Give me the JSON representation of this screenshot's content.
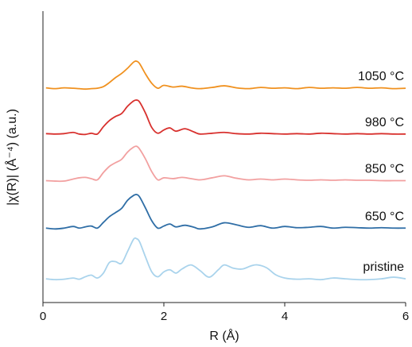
{
  "chart_data": {
    "type": "line",
    "title": "",
    "xlabel": "R (Å)",
    "ylabel": "|χ(R)|  (Å⁻⁴) (a.u.)",
    "xlim": [
      0,
      6
    ],
    "xticks": [
      "0",
      "2",
      "4",
      "6"
    ],
    "ylim_note": "curves vertically offset, arbitrary units",
    "grid": false,
    "legend": "none (series labeled inline at right)",
    "series": [
      {
        "name": "1050 °C",
        "color": "#f0911f",
        "x": [
          0.05,
          0.2,
          0.35,
          0.5,
          0.6,
          0.7,
          0.8,
          0.9,
          1.0,
          1.1,
          1.2,
          1.3,
          1.4,
          1.5,
          1.55,
          1.6,
          1.7,
          1.8,
          1.9,
          2.0,
          2.15,
          2.3,
          2.45,
          2.6,
          2.8,
          3.0,
          3.2,
          3.4,
          3.6,
          3.8,
          4.0,
          4.2,
          4.4,
          4.6,
          4.8,
          5.0,
          5.2,
          5.4,
          5.6,
          5.8,
          6.0
        ],
        "y": [
          5.25,
          5.23,
          5.25,
          5.24,
          5.23,
          5.22,
          5.23,
          5.24,
          5.28,
          5.38,
          5.5,
          5.6,
          5.73,
          5.88,
          5.9,
          5.84,
          5.58,
          5.36,
          5.24,
          5.31,
          5.27,
          5.29,
          5.25,
          5.23,
          5.26,
          5.3,
          5.25,
          5.23,
          5.26,
          5.24,
          5.25,
          5.23,
          5.26,
          5.24,
          5.25,
          5.24,
          5.26,
          5.24,
          5.25,
          5.23,
          5.24
        ]
      },
      {
        "name": "980 °C",
        "color": "#d8312e",
        "x": [
          0.05,
          0.2,
          0.35,
          0.5,
          0.6,
          0.7,
          0.8,
          0.9,
          1.0,
          1.1,
          1.2,
          1.3,
          1.4,
          1.5,
          1.55,
          1.6,
          1.7,
          1.8,
          1.9,
          2.0,
          2.1,
          2.2,
          2.35,
          2.5,
          2.6,
          2.8,
          3.0,
          3.2,
          3.4,
          3.6,
          3.8,
          4.0,
          4.2,
          4.4,
          4.6,
          4.8,
          5.0,
          5.2,
          5.4,
          5.6,
          5.8,
          6.0
        ],
        "y": [
          4.13,
          4.12,
          4.13,
          4.16,
          4.12,
          4.11,
          4.14,
          4.12,
          4.3,
          4.45,
          4.55,
          4.62,
          4.8,
          4.93,
          4.95,
          4.9,
          4.62,
          4.28,
          4.14,
          4.22,
          4.27,
          4.19,
          4.25,
          4.17,
          4.12,
          4.14,
          4.16,
          4.13,
          4.12,
          4.14,
          4.13,
          4.12,
          4.13,
          4.12,
          4.14,
          4.13,
          4.12,
          4.13,
          4.12,
          4.13,
          4.12,
          4.12
        ]
      },
      {
        "name": "850 °C",
        "color": "#f2a0a0",
        "x": [
          0.05,
          0.2,
          0.35,
          0.5,
          0.6,
          0.7,
          0.8,
          0.9,
          1.0,
          1.1,
          1.2,
          1.3,
          1.4,
          1.5,
          1.55,
          1.6,
          1.7,
          1.8,
          1.9,
          2.0,
          2.15,
          2.3,
          2.45,
          2.6,
          2.8,
          3.0,
          3.2,
          3.4,
          3.6,
          3.8,
          4.0,
          4.2,
          4.4,
          4.6,
          4.8,
          5.0,
          5.2,
          5.4,
          5.6,
          5.8,
          6.0
        ],
        "y": [
          2.98,
          2.97,
          2.97,
          3.02,
          3.05,
          3.06,
          3.03,
          3.0,
          3.18,
          3.33,
          3.42,
          3.5,
          3.68,
          3.8,
          3.82,
          3.75,
          3.5,
          3.2,
          3.0,
          3.05,
          3.03,
          3.06,
          3.03,
          3.0,
          3.05,
          3.1,
          3.04,
          3.0,
          3.02,
          3.0,
          3.02,
          3.0,
          2.99,
          3.0,
          2.99,
          3.0,
          2.99,
          2.99,
          2.98,
          2.98,
          2.98
        ]
      },
      {
        "name": "650 °C",
        "color": "#2f6ea6",
        "x": [
          0.05,
          0.2,
          0.35,
          0.5,
          0.6,
          0.7,
          0.8,
          0.9,
          1.0,
          1.1,
          1.2,
          1.3,
          1.4,
          1.5,
          1.55,
          1.6,
          1.7,
          1.8,
          1.9,
          2.0,
          2.1,
          2.2,
          2.35,
          2.5,
          2.6,
          2.8,
          3.0,
          3.2,
          3.4,
          3.6,
          3.8,
          4.0,
          4.2,
          4.4,
          4.6,
          4.8,
          5.0,
          5.2,
          5.4,
          5.6,
          5.8,
          6.0
        ],
        "y": [
          1.82,
          1.8,
          1.82,
          1.86,
          1.82,
          1.85,
          1.87,
          1.82,
          1.96,
          2.1,
          2.2,
          2.3,
          2.5,
          2.62,
          2.64,
          2.58,
          2.3,
          2.0,
          1.82,
          1.87,
          1.92,
          1.85,
          1.89,
          1.84,
          1.8,
          1.85,
          1.95,
          1.9,
          1.84,
          1.88,
          1.82,
          1.86,
          1.83,
          1.84,
          1.86,
          1.82,
          1.84,
          1.83,
          1.82,
          1.83,
          1.82,
          1.82
        ]
      },
      {
        "name": "pristine",
        "color": "#a9d3ec",
        "x": [
          0.05,
          0.2,
          0.35,
          0.5,
          0.6,
          0.7,
          0.8,
          0.9,
          1.0,
          1.1,
          1.2,
          1.3,
          1.4,
          1.5,
          1.55,
          1.6,
          1.7,
          1.8,
          1.9,
          2.0,
          2.1,
          2.2,
          2.3,
          2.45,
          2.6,
          2.75,
          2.9,
          3.0,
          3.15,
          3.3,
          3.45,
          3.55,
          3.7,
          3.85,
          4.0,
          4.2,
          4.4,
          4.6,
          4.8,
          5.0,
          5.2,
          5.4,
          5.6,
          5.8,
          6.0
        ],
        "y": [
          0.58,
          0.56,
          0.57,
          0.6,
          0.57,
          0.63,
          0.67,
          0.6,
          0.72,
          0.98,
          1.0,
          0.96,
          1.25,
          1.55,
          1.56,
          1.48,
          1.1,
          0.75,
          0.63,
          0.75,
          0.8,
          0.72,
          0.82,
          0.92,
          0.78,
          0.62,
          0.8,
          0.92,
          0.84,
          0.82,
          0.9,
          0.92,
          0.85,
          0.68,
          0.6,
          0.57,
          0.58,
          0.56,
          0.6,
          0.58,
          0.56,
          0.56,
          0.58,
          0.62,
          0.58
        ]
      }
    ]
  }
}
